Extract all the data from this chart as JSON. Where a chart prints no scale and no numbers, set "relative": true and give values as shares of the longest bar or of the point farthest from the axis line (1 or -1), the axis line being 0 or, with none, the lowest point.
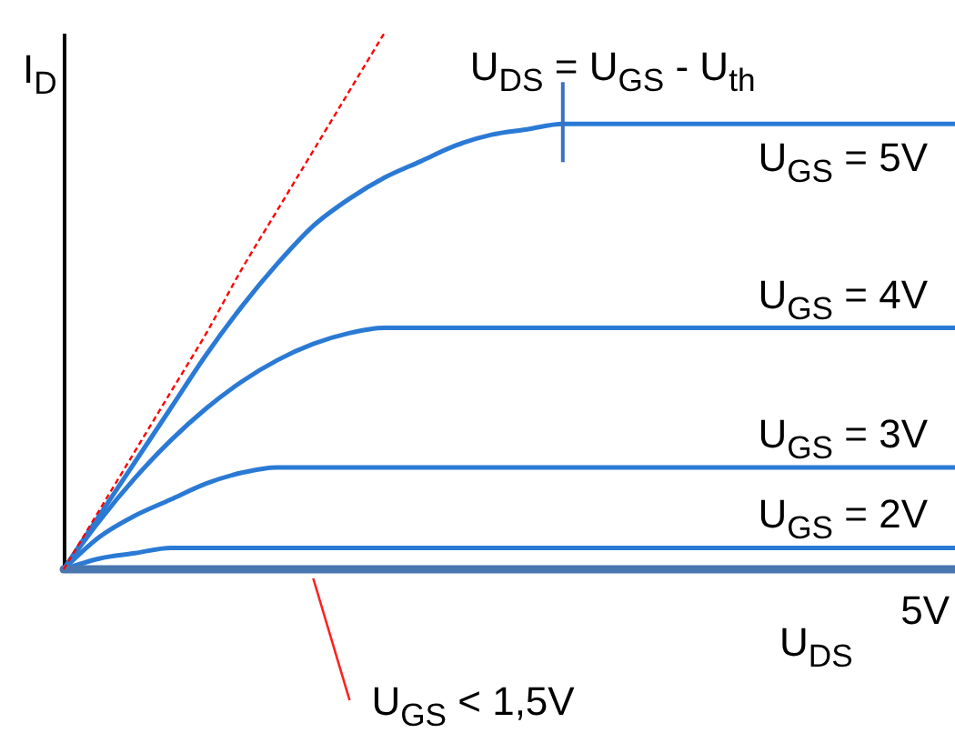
{
  "chart_data": {
    "type": "line",
    "relative": true,
    "xlabel": "U$_{DS}$",
    "ylabel": "I$_{D}$",
    "line_style": "solid",
    "categories": [
      null,
      null,
      null,
      null,
      null,
      null,
      null,
      null,
      null,
      null,
      null,
      null,
      null,
      null,
      null,
      null,
      null,
      null,
      null,
      null,
      null,
      null,
      null,
      null,
      null,
      null
    ],
    "annotations": [
      "U$_{DS}$ = U$_{GS}$ - U$_{th}$",
      "5V"
    ],
    "series": [
      {
        "name": "U$_{GS}$ = 5V",
        "color": "#2a7ad5",
        "values": [
          0,
          0.1,
          0.2,
          0.3,
          0.4,
          0.49,
          0.57,
          0.64,
          0.69,
          0.73,
          0.76,
          0.79,
          0.81,
          0.82,
          0.83,
          0.83,
          0.83,
          0.83,
          0.83,
          0.83,
          0.83,
          0.83,
          0.83,
          0.83,
          0.83,
          0.83
        ]
      },
      {
        "name": "U$_{GS}$ = 4V",
        "color": "#2a7ad5",
        "values": [
          0,
          0.09,
          0.17,
          0.24,
          0.3,
          0.35,
          0.39,
          0.42,
          0.44,
          0.45,
          0.45,
          0.45,
          0.45,
          0.45,
          0.45,
          0.45,
          0.45,
          0.45,
          0.45,
          0.45,
          0.45,
          0.45,
          0.45,
          0.45,
          0.45,
          0.45
        ]
      },
      {
        "name": "U$_{GS}$ = 3V",
        "color": "#2a7ad5",
        "values": [
          0,
          0.06,
          0.1,
          0.13,
          0.16,
          0.18,
          0.19,
          0.19,
          0.19,
          0.19,
          0.19,
          0.19,
          0.19,
          0.19,
          0.19,
          0.19,
          0.19,
          0.19,
          0.19,
          0.19,
          0.19,
          0.19,
          0.19,
          0.19,
          0.19,
          0.19
        ]
      },
      {
        "name": "U$_{GS}$ = 2V",
        "color": "#2a7ad5",
        "values": [
          0,
          0.02,
          0.03,
          0.04,
          0.04,
          0.04,
          0.04,
          0.04,
          0.04,
          0.04,
          0.04,
          0.04,
          0.04,
          0.04,
          0.04,
          0.04,
          0.04,
          0.04,
          0.04,
          0.04,
          0.04,
          0.04,
          0.04,
          0.04,
          0.04,
          0.04
        ]
      },
      {
        "name": "U$_{GS}$ < 1,5V",
        "color": "#4a76b0",
        "values": [
          0,
          0,
          0,
          0,
          0,
          0,
          0,
          0,
          0,
          0,
          0,
          0,
          0,
          0,
          0,
          0,
          0,
          0,
          0,
          0,
          0,
          0,
          0,
          0,
          0,
          0
        ]
      },
      {
        "type": "line",
        "line_style": "dashed",
        "color": "#ff0000",
        "values": [
          0,
          0.11,
          0.22,
          0.33,
          0.44,
          0.56,
          0.67,
          0.78,
          0.89,
          1,
          null,
          null,
          null,
          null,
          null,
          null,
          null,
          null,
          null,
          null,
          null,
          null,
          null,
          null,
          null,
          null
        ]
      }
    ]
  }
}
